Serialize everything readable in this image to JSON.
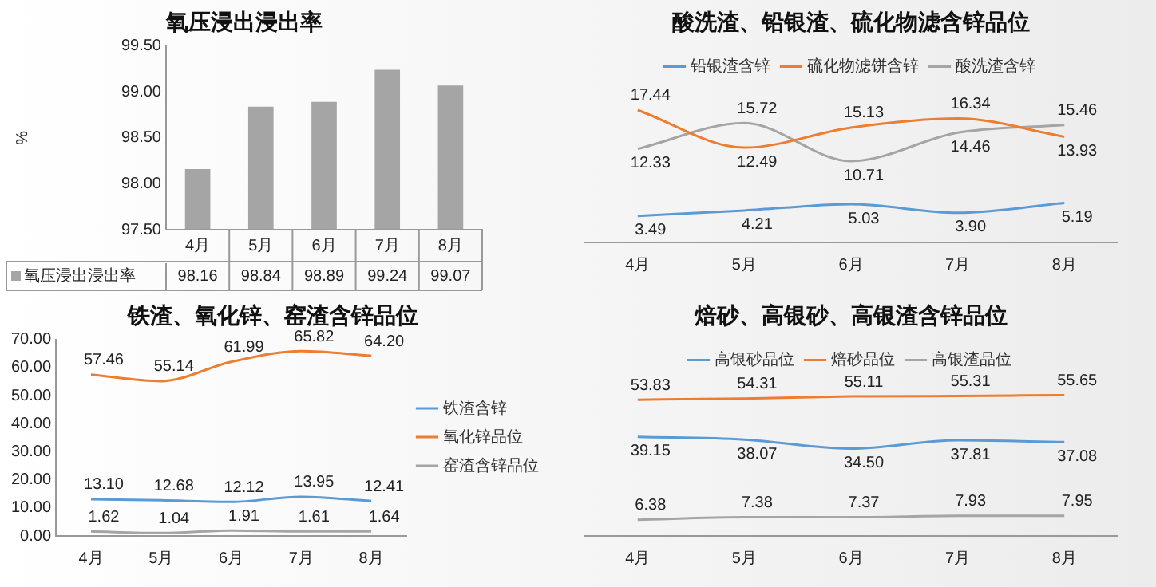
{
  "chart_data": [
    {
      "type": "bar",
      "title": "氧压浸出浸出率",
      "ylabel": "%",
      "categories": [
        "4月",
        "5月",
        "6月",
        "7月",
        "8月"
      ],
      "series": [
        {
          "name": "氧压浸出浸出率",
          "color": "#a5a5a5",
          "values": [
            98.16,
            98.84,
            98.89,
            99.24,
            99.07
          ]
        }
      ],
      "ylim": [
        97.5,
        99.5
      ],
      "yticks": [
        {
          "value": 97.5,
          "label": "97.50"
        },
        {
          "value": 98,
          "label": "98.00"
        },
        {
          "value": 98.5,
          "label": "98.50"
        },
        {
          "value": 99,
          "label": "99.00"
        },
        {
          "value": 99.5,
          "label": "99.50"
        }
      ],
      "data_labels": true
    },
    {
      "type": "line",
      "title": "酸洗渣、铅银渣、硫化物滤含锌品位",
      "categories": [
        "4月",
        "5月",
        "6月",
        "7月",
        "8月"
      ],
      "series": [
        {
          "name": "铅银渣含锌",
          "color": "#5b9bd5",
          "values": [
            3.49,
            4.21,
            5.03,
            3.9,
            5.19
          ],
          "value_labels": [
            "3.49",
            "4.21",
            "5.03",
            "3.90",
            "5.19"
          ]
        },
        {
          "name": "硫化物滤饼含锌",
          "color": "#ed7d31",
          "values": [
            17.44,
            12.49,
            15.13,
            16.34,
            13.93
          ],
          "value_labels": [
            "17.44",
            "12.49",
            "15.13",
            "16.34",
            "13.93"
          ]
        },
        {
          "name": "酸洗渣含锌",
          "color": "#a5a5a5",
          "values": [
            12.33,
            15.72,
            10.71,
            14.46,
            15.46
          ],
          "value_labels": [
            "12.33",
            "15.72",
            "10.71",
            "14.46",
            "15.46"
          ]
        }
      ],
      "legend": "top",
      "tick_labels": "x",
      "marker": "none"
    },
    {
      "type": "line",
      "title": "铁渣、氧化锌、窑渣含锌品位",
      "categories": [
        "4月",
        "5月",
        "6月",
        "7月",
        "8月"
      ],
      "series": [
        {
          "name": "铁渣含锌",
          "color": "#5b9bd5",
          "values": [
            13.1,
            12.68,
            12.12,
            13.95,
            12.41
          ],
          "value_labels": [
            "13.10",
            "12.68",
            "12.12",
            "13.95",
            "12.41"
          ]
        },
        {
          "name": "氧化锌品位",
          "color": "#ed7d31",
          "values": [
            57.46,
            55.14,
            61.99,
            65.82,
            64.2
          ],
          "value_labels": [
            "57.46",
            "55.14",
            "61.99",
            "65.82",
            "64.20"
          ]
        },
        {
          "name": "窑渣含锌品位",
          "color": "#a5a5a5",
          "values": [
            1.62,
            1.04,
            1.91,
            1.61,
            1.64
          ],
          "value_labels": [
            "1.62",
            "1.04",
            "1.91",
            "1.61",
            "1.64"
          ]
        }
      ],
      "ylim": [
        0,
        70
      ],
      "yticks": [
        {
          "value": 0,
          "label": "0.00"
        },
        {
          "value": 10,
          "label": "10.00"
        },
        {
          "value": 20,
          "label": "20.00"
        },
        {
          "value": 30,
          "label": "30.00"
        },
        {
          "value": 40,
          "label": "40.00"
        },
        {
          "value": 50,
          "label": "50.00"
        },
        {
          "value": 60,
          "label": "60.00"
        },
        {
          "value": 70,
          "label": "70.00"
        }
      ],
      "legend": "right",
      "marker": "none"
    },
    {
      "type": "line",
      "title": "焙砂、高银砂、高银渣含锌品位",
      "categories": [
        "4月",
        "5月",
        "6月",
        "7月",
        "8月"
      ],
      "series": [
        {
          "name": "高银砂品位",
          "color": "#5b9bd5",
          "values": [
            39.15,
            38.07,
            34.5,
            37.81,
            37.08
          ],
          "value_labels": [
            "39.15",
            "38.07",
            "34.50",
            "37.81",
            "37.08"
          ]
        },
        {
          "name": "焙砂品位",
          "color": "#ed7d31",
          "values": [
            53.83,
            54.31,
            55.11,
            55.31,
            55.65
          ],
          "value_labels": [
            "53.83",
            "54.31",
            "55.11",
            "55.31",
            "55.65"
          ]
        },
        {
          "name": "高银渣品位",
          "color": "#a5a5a5",
          "values": [
            6.38,
            7.38,
            7.37,
            7.93,
            7.95
          ],
          "value_labels": [
            "6.38",
            "7.38",
            "7.37",
            "7.93",
            "7.95"
          ]
        }
      ],
      "legend": "top",
      "tick_labels": "x",
      "marker": "none"
    }
  ]
}
